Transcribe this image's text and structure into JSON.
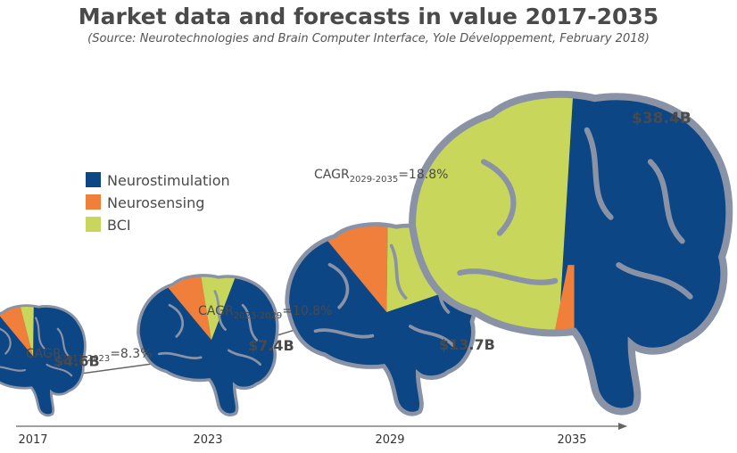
{
  "chart_data": {
    "type": "bar",
    "title": "Market data and forecasts in value 2017-2035",
    "subtitle": "(Source: Neurotechnologies and Brain Computer Interface, Yole Développement, February 2018)",
    "categories": [
      "2017",
      "2023",
      "2029",
      "2035"
    ],
    "values": [
      4.6,
      7.4,
      13.7,
      38.4
    ],
    "value_labels": [
      "$4.6B",
      "$7.4B",
      "$13.7B",
      "$38.4B"
    ],
    "series": [
      {
        "name": "Neurostimulation",
        "color": "#0d4684"
      },
      {
        "name": "Neurosensing",
        "color": "#f07f3c"
      },
      {
        "name": "BCI",
        "color": "#c8d65b"
      }
    ],
    "shares": [
      {
        "neurostimulation": 0.92,
        "neurosensing": 0.05,
        "bci": 0.03
      },
      {
        "neurostimulation": 0.88,
        "neurosensing": 0.06,
        "bci": 0.06
      },
      {
        "neurostimulation": 0.78,
        "neurosensing": 0.08,
        "bci": 0.14
      },
      {
        "neurostimulation": 0.5,
        "neurosensing": 0.04,
        "bci": 0.46
      }
    ],
    "cagr": [
      {
        "prefix": "CAGR",
        "period": "2017-2023",
        "suffix": "=8.3%"
      },
      {
        "prefix": "CAGR",
        "period": "2023-2029",
        "suffix": "=10.8%"
      },
      {
        "prefix": "CAGR",
        "period": "2029-2035",
        "suffix": "=18.8%"
      }
    ],
    "legend_position": "left",
    "outline_color": "#8a93a6"
  }
}
